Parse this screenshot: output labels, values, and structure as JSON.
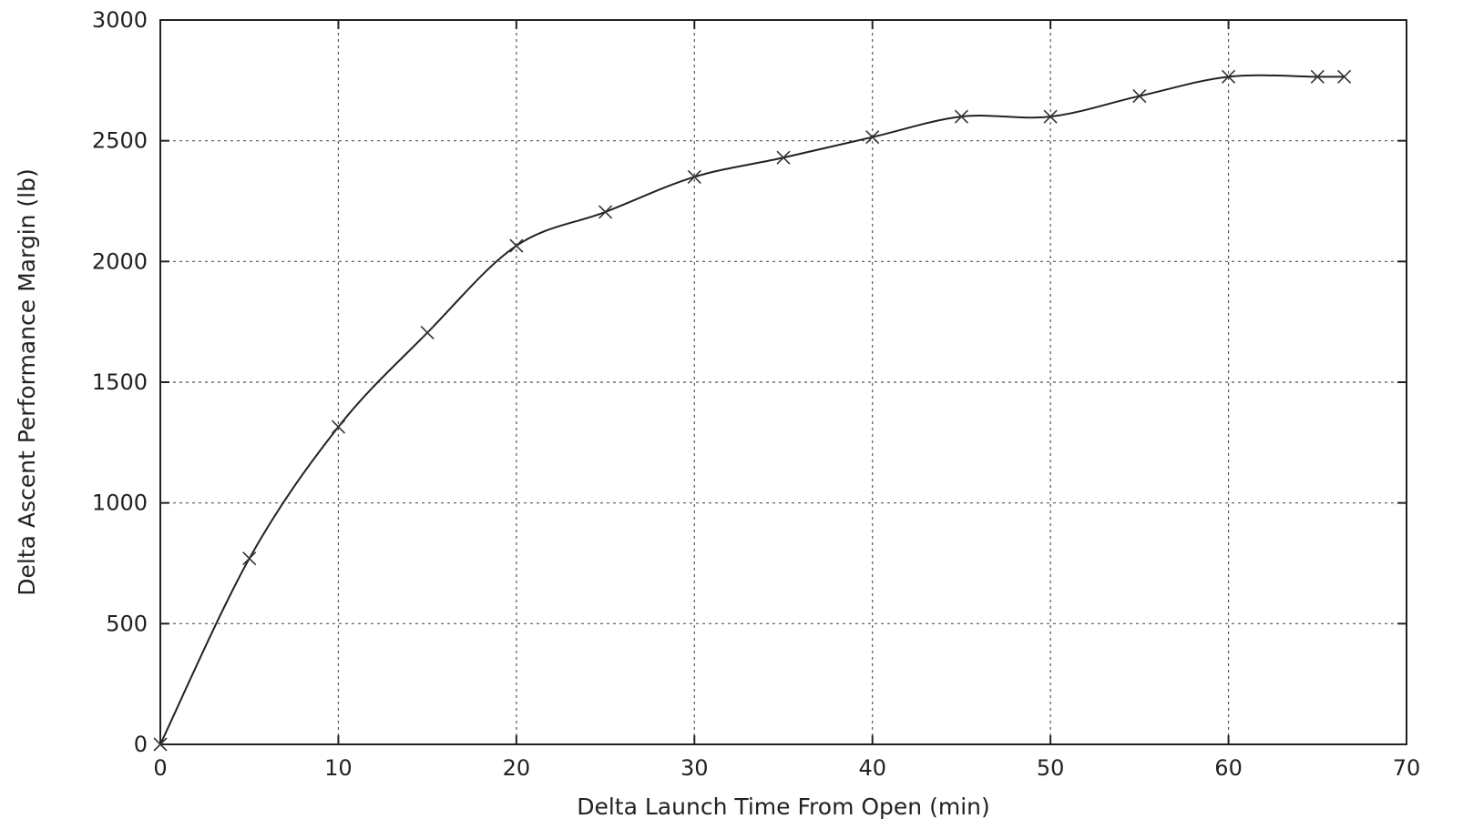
{
  "chart_data": {
    "type": "line",
    "title": "",
    "xlabel": "Delta Launch Time From Open (min)",
    "ylabel": "Delta Ascent Performance Margin (lb)",
    "xlim": [
      0,
      70
    ],
    "ylim": [
      0,
      3000
    ],
    "x_ticks": [
      0,
      10,
      20,
      30,
      40,
      50,
      60,
      70
    ],
    "y_ticks": [
      0,
      500,
      1000,
      1500,
      2000,
      2500,
      3000
    ],
    "x_tick_labels": [
      "0",
      "10",
      "20",
      "30",
      "40",
      "50",
      "60",
      "70"
    ],
    "y_tick_labels": [
      "0",
      "500",
      "1000",
      "1500",
      "2000",
      "2500",
      "3000"
    ],
    "grid": true,
    "marker": "x",
    "series": [
      {
        "x": [
          0,
          5,
          10,
          15,
          20,
          25,
          30,
          35,
          40,
          45,
          50,
          55,
          60,
          65,
          66.5
        ],
        "y": [
          0,
          770,
          1315,
          1705,
          2065,
          2205,
          2350,
          2430,
          2515,
          2600,
          2600,
          2685,
          2765,
          2765,
          2765
        ]
      }
    ]
  }
}
